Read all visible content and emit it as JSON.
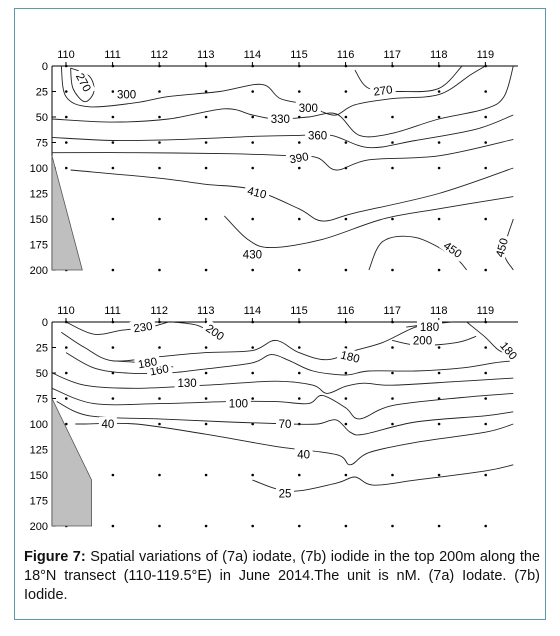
{
  "chart_data": [
    {
      "id": "7a",
      "type": "contour",
      "x_ticks": [
        "110",
        "111",
        "112",
        "113",
        "114",
        "115",
        "116",
        "117",
        "118",
        "119"
      ],
      "y_ticks": [
        "0",
        "25",
        "50",
        "75",
        "100",
        "125",
        "150",
        "175",
        "200"
      ],
      "xlim": [
        109.7,
        119.7
      ],
      "ylim": [
        0,
        200
      ],
      "contour_levels": [
        {
          "label": "270",
          "points": [
            [
              110.1,
              2
            ],
            [
              110.5,
              10
            ],
            [
              110.6,
              25
            ],
            [
              110.4,
              35
            ],
            [
              110.15,
              22
            ],
            [
              110.1,
              2
            ]
          ],
          "label_at": [
            110.38,
            16
          ],
          "label_rot": 62
        },
        {
          "label": "300",
          "points": [
            [
              109.9,
              0
            ],
            [
              110.0,
              30
            ],
            [
              110.5,
              40
            ],
            [
              111.5,
              36
            ],
            [
              112.2,
              30
            ],
            [
              113.3,
              25
            ],
            [
              114.2,
              18
            ],
            [
              114.6,
              32
            ],
            [
              115.2,
              38
            ],
            [
              115.5,
              45
            ]
          ],
          "label_at": [
            111.3,
            28
          ],
          "label_rot": 0
        },
        {
          "label": "300",
          "points": [
            [
              115.5,
              45
            ],
            [
              115.8,
              48
            ],
            [
              116.2,
              38
            ],
            [
              117.0,
              32
            ],
            [
              118.0,
              28
            ],
            [
              118.7,
              8
            ],
            [
              119.0,
              0
            ]
          ],
          "label_at": [
            115.2,
            41
          ],
          "label_rot": 0
        },
        {
          "label": "270",
          "points": [
            [
              116.2,
              4
            ],
            [
              116.5,
              22
            ],
            [
              117.2,
              25
            ],
            [
              118.0,
              22
            ],
            [
              118.5,
              0
            ]
          ],
          "label_at": [
            116.8,
            24
          ],
          "label_rot": -8
        },
        {
          "label": "330",
          "points": [
            [
              109.7,
              52
            ],
            [
              111.0,
              55
            ],
            [
              112.2,
              52
            ],
            [
              113.4,
              42
            ],
            [
              114.0,
              48
            ],
            [
              114.5,
              52
            ],
            [
              115.2,
              50
            ],
            [
              115.8,
              47
            ],
            [
              116.3,
              68
            ],
            [
              117.0,
              66
            ],
            [
              118.0,
              52
            ],
            [
              119.0,
              42
            ],
            [
              119.4,
              30
            ],
            [
              119.6,
              0
            ]
          ],
          "label_at": [
            114.6,
            52
          ],
          "label_rot": 0
        },
        {
          "label": "360",
          "points": [
            [
              109.7,
              70
            ],
            [
              111.0,
              73
            ],
            [
              112.5,
              72
            ],
            [
              114.0,
              69
            ],
            [
              115.0,
              68
            ],
            [
              115.7,
              68
            ],
            [
              116.5,
              80
            ],
            [
              117.5,
              73
            ],
            [
              118.8,
              62
            ],
            [
              119.6,
              48
            ]
          ],
          "label_at": [
            115.4,
            68
          ],
          "label_rot": 0
        },
        {
          "label": "390",
          "points": [
            [
              109.7,
              85
            ],
            [
              111.5,
              85
            ],
            [
              113.5,
              86
            ],
            [
              114.8,
              88
            ],
            [
              115.4,
              90
            ],
            [
              115.8,
              102
            ],
            [
              116.5,
              92
            ],
            [
              118.0,
              88
            ],
            [
              119.6,
              72
            ]
          ],
          "label_at": [
            115.0,
            90
          ],
          "label_rot": -10
        },
        {
          "label": "410",
          "points": [
            [
              110.1,
              102
            ],
            [
              112.0,
              110
            ],
            [
              113.0,
              116
            ],
            [
              114.0,
              121
            ],
            [
              115.0,
              140
            ],
            [
              115.5,
              152
            ],
            [
              116.2,
              144
            ],
            [
              118.0,
              125
            ],
            [
              119.6,
              100
            ]
          ],
          "label_at": [
            114.1,
            124
          ],
          "label_rot": 14
        },
        {
          "label": "430",
          "points": [
            [
              113.4,
              147
            ],
            [
              113.9,
              170
            ],
            [
              114.4,
              178
            ],
            [
              115.5,
              170
            ],
            [
              116.8,
              150
            ],
            [
              118.0,
              140
            ],
            [
              119.6,
              128
            ]
          ],
          "label_at": [
            114.0,
            185
          ],
          "label_rot": 0
        },
        {
          "label": "450",
          "points": [
            [
              116.5,
              200
            ],
            [
              116.8,
              172
            ],
            [
              117.5,
              168
            ],
            [
              118.3,
              186
            ],
            [
              118.6,
              200
            ]
          ],
          "label_at": [
            118.3,
            180
          ],
          "label_rot": 35
        },
        {
          "label": "450",
          "points": [
            [
              119.6,
              150
            ],
            [
              119.4,
              182
            ],
            [
              119.6,
              200
            ]
          ],
          "label_at": [
            119.35,
            178
          ],
          "label_rot": -75
        }
      ]
    },
    {
      "id": "7b",
      "type": "contour",
      "x_ticks": [
        "110",
        "111",
        "112",
        "113",
        "114",
        "115",
        "116",
        "117",
        "118",
        "119"
      ],
      "y_ticks": [
        "0",
        "25",
        "50",
        "75",
        "100",
        "125",
        "150",
        "175",
        "200"
      ],
      "xlim": [
        109.7,
        119.7
      ],
      "ylim": [
        0,
        200
      ],
      "contour_levels": [
        {
          "label": "230",
          "points": [
            [
              110.0,
              0
            ],
            [
              110.6,
              12
            ],
            [
              111.2,
              8
            ],
            [
              111.8,
              5
            ],
            [
              112.2,
              0
            ]
          ],
          "label_at": [
            111.65,
            5
          ],
          "label_rot": -8
        },
        {
          "label": "200",
          "points": [
            [
              112.3,
              0
            ],
            [
              112.8,
              3
            ],
            [
              113.1,
              10
            ]
          ],
          "label_at": [
            113.2,
            10
          ],
          "label_rot": 35
        },
        {
          "label": "180",
          "points": [
            [
              109.9,
              10
            ],
            [
              110.4,
              25
            ],
            [
              111.0,
              38
            ],
            [
              112.0,
              34
            ],
            [
              113.0,
              30
            ],
            [
              114.0,
              28
            ],
            [
              114.5,
              18
            ],
            [
              115.0,
              30
            ],
            [
              115.6,
              37
            ],
            [
              116.2,
              28
            ],
            [
              116.8,
              20
            ],
            [
              117.5,
              5
            ],
            [
              118.0,
              2
            ]
          ],
          "label_at": [
            116.1,
            34
          ],
          "label_rot": 14
        },
        {
          "label": "180",
          "points": [
            [
              118.6,
              0
            ],
            [
              119.0,
              15
            ],
            [
              119.3,
              28
            ],
            [
              119.6,
              32
            ]
          ],
          "label_at": [
            119.5,
            28
          ],
          "label_rot": 50
        },
        {
          "label": "180",
          "points": [
            [
              117.3,
              5
            ],
            [
              117.8,
              2
            ],
            [
              118.3,
              0
            ]
          ],
          "label_at": [
            117.8,
            5
          ],
          "label_rot": 0
        },
        {
          "label": "200",
          "points": [
            [
              117.0,
              18
            ],
            [
              117.6,
              23
            ],
            [
              118.4,
              20
            ],
            [
              118.8,
              14
            ]
          ],
          "label_at": [
            117.65,
            18
          ],
          "label_rot": 0
        },
        {
          "label": "160",
          "points": [
            [
              110.0,
              30
            ],
            [
              110.6,
              45
            ],
            [
              111.3,
              50
            ],
            [
              112.2,
              50
            ],
            [
              113.0,
              46
            ],
            [
              114.0,
              40
            ],
            [
              114.4,
              32
            ],
            [
              114.8,
              38
            ],
            [
              115.3,
              48
            ],
            [
              116.0,
              52
            ],
            [
              116.5,
              48
            ],
            [
              117.5,
              48
            ],
            [
              118.5,
              45
            ],
            [
              119.2,
              40
            ],
            [
              119.6,
              38
            ]
          ],
          "label_at": [
            112.0,
            47
          ],
          "label_rot": -10
        },
        {
          "label": "180",
          "points": [
            [
              111.0,
              38
            ],
            [
              111.6,
              40
            ],
            [
              112.3,
              44
            ]
          ],
          "label_at": [
            111.75,
            40
          ],
          "label_rot": -10
        },
        {
          "label": "130",
          "points": [
            [
              109.7,
              50
            ],
            [
              110.4,
              62
            ],
            [
              111.5,
              65
            ],
            [
              113.0,
              62
            ],
            [
              114.5,
              58
            ],
            [
              115.3,
              62
            ],
            [
              115.6,
              70
            ],
            [
              116.0,
              63
            ],
            [
              116.4,
              60
            ],
            [
              117.0,
              62
            ],
            [
              118.5,
              58
            ],
            [
              119.6,
              55
            ]
          ],
          "label_at": [
            112.6,
            60
          ],
          "label_rot": 0
        },
        {
          "label": "100",
          "points": [
            [
              109.7,
              65
            ],
            [
              110.6,
              80
            ],
            [
              112.0,
              80
            ],
            [
              113.5,
              78
            ],
            [
              114.5,
              78
            ],
            [
              115.2,
              80
            ],
            [
              115.5,
              72
            ],
            [
              116.0,
              84
            ],
            [
              116.3,
              95
            ],
            [
              117.0,
              82
            ],
            [
              118.5,
              74
            ],
            [
              119.6,
              70
            ]
          ],
          "label_at": [
            113.7,
            80
          ],
          "label_rot": 0
        },
        {
          "label": "70",
          "points": [
            [
              109.8,
              78
            ],
            [
              110.5,
              92
            ],
            [
              112.0,
              95
            ],
            [
              113.5,
              98
            ],
            [
              114.8,
              100
            ],
            [
              115.4,
              100
            ],
            [
              115.8,
              96
            ],
            [
              116.1,
              108
            ],
            [
              116.4,
              110
            ],
            [
              117.5,
              98
            ],
            [
              119.0,
              92
            ],
            [
              119.6,
              88
            ]
          ],
          "label_at": [
            114.7,
            100
          ],
          "label_rot": 0
        },
        {
          "label": "40",
          "points": [
            [
              110.2,
              100
            ],
            [
              110.4,
              100
            ],
            [
              111.5,
              100
            ],
            [
              113.0,
              110
            ],
            [
              114.5,
              122
            ],
            [
              115.8,
              130
            ],
            [
              116.1,
              140
            ],
            [
              116.5,
              128
            ],
            [
              117.5,
              118
            ],
            [
              119.0,
              108
            ],
            [
              119.6,
              100
            ]
          ],
          "label_at": [
            110.9,
            100
          ],
          "label_rot": 0
        },
        {
          "label": "40",
          "points": [],
          "label_at": [
            115.1,
            130
          ],
          "label_rot": 0
        },
        {
          "label": "25",
          "points": [
            [
              114.0,
              155
            ],
            [
              114.8,
              166
            ],
            [
              115.8,
              158
            ],
            [
              116.2,
              152
            ],
            [
              116.6,
              160
            ],
            [
              117.5,
              155
            ],
            [
              119.0,
              146
            ],
            [
              119.6,
              140
            ]
          ],
          "label_at": [
            114.7,
            168
          ],
          "label_rot": 0
        }
      ]
    }
  ],
  "caption": {
    "label": "Figure 7:",
    "text": " Spatial variations of (7a) iodate, (7b) iodide in the top 200m along the 18°N transect (110-119.5°E) in June 2014.The unit is nM. (7a) Iodate. (7b) Iodide."
  },
  "colors": {
    "land": "#bfbfbf",
    "line": "#222222",
    "frame": "#5a9aa8"
  }
}
